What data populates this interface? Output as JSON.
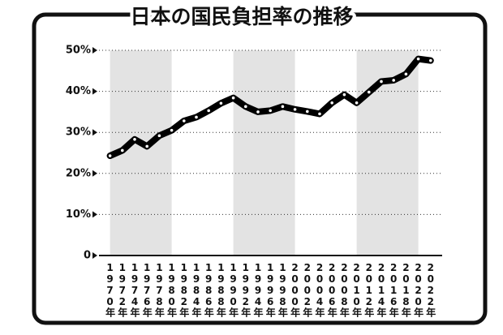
{
  "chart_data": {
    "type": "line",
    "title": "日本の国民負担率の推移",
    "categories": [
      "1970年",
      "1972年",
      "1974年",
      "1976年",
      "1978年",
      "1980年",
      "1982年",
      "1984年",
      "1986年",
      "1988年",
      "1990年",
      "1992年",
      "1994年",
      "1996年",
      "1998年",
      "2000年",
      "2002年",
      "2004年",
      "2006年",
      "2008年",
      "2010年",
      "2012年",
      "2014年",
      "2016年",
      "2018年",
      "2020年",
      "2022年"
    ],
    "series": [
      {
        "color": "#000000",
        "values": [
          24.3,
          25.6,
          28.3,
          26.6,
          29.2,
          30.5,
          32.8,
          33.7,
          35.3,
          37.1,
          38.4,
          36.3,
          35.0,
          35.3,
          36.3,
          35.6,
          35.1,
          34.5,
          37.2,
          39.2,
          37.2,
          39.8,
          42.4,
          42.7,
          44.2,
          47.9,
          47.5
        ]
      }
    ],
    "ylim": [
      0,
      50
    ],
    "yticks": [
      0,
      {
        "value": 10,
        "label": "10%"
      },
      {
        "value": 20,
        "label": "20%"
      },
      {
        "value": 30,
        "label": "30%"
      },
      {
        "value": 40,
        "label": "40%"
      },
      {
        "value": 50,
        "label": "50%"
      }
    ],
    "grid": true
  }
}
